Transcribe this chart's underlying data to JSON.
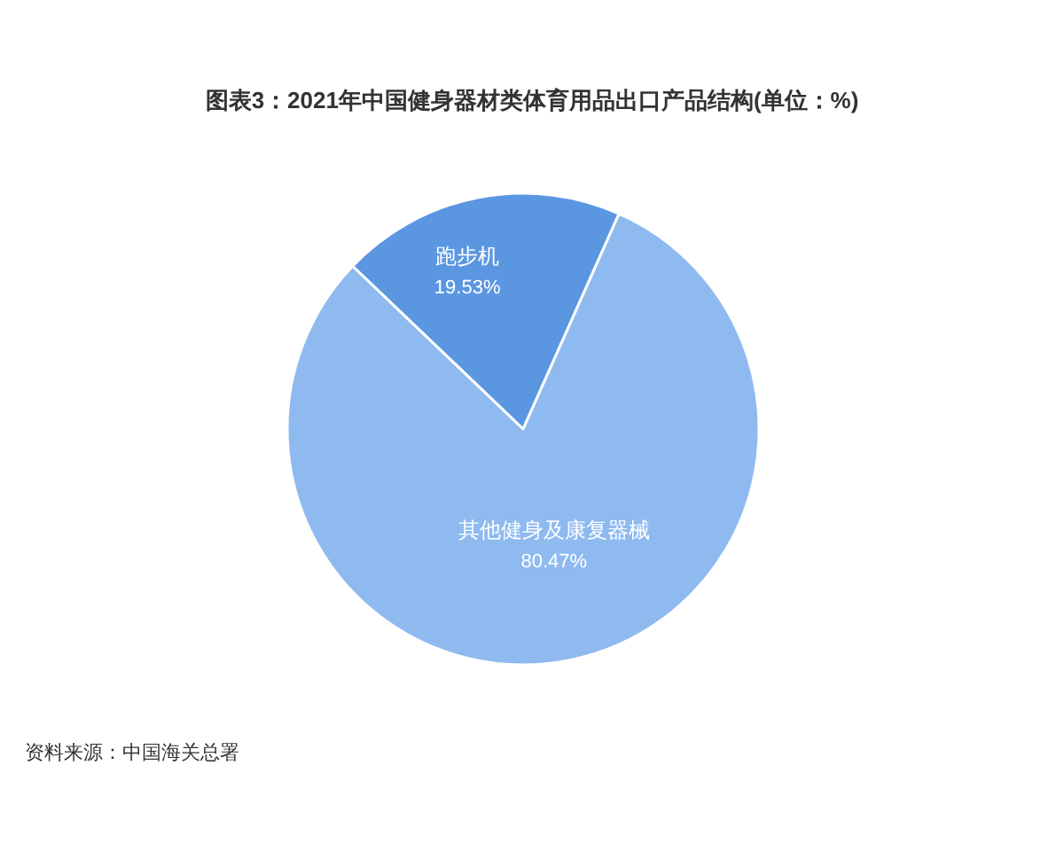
{
  "chart_data": {
    "type": "pie",
    "title": "图表3：2021年中国健身器材类体育用品出口产品结构(单位：%)",
    "categories": [
      "跑步机",
      "其他健身及康复器械"
    ],
    "values": [
      19.53,
      80.47
    ],
    "colors": [
      "#5b97e1",
      "#8ebaf0"
    ],
    "value_labels": [
      "19.53%",
      "80.47%"
    ],
    "annotations": [
      "资料来源：中国海关总署"
    ]
  }
}
